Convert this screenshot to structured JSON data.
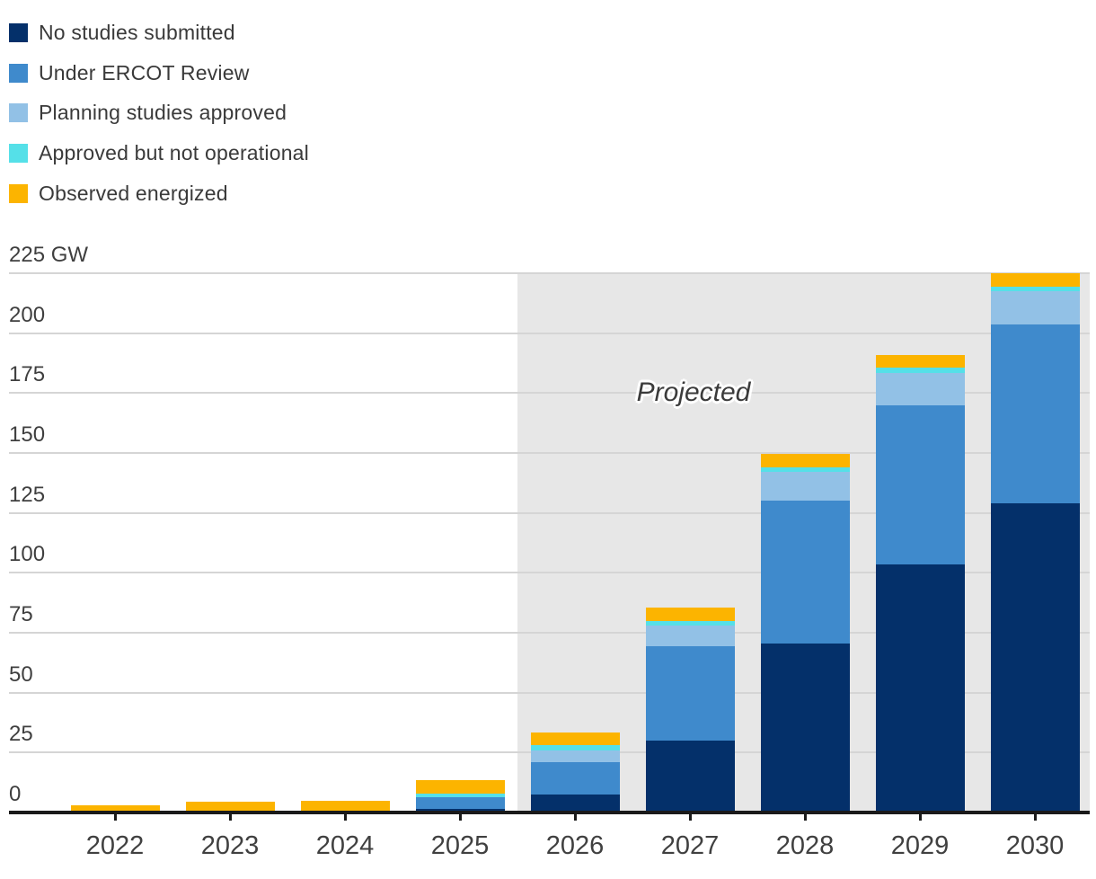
{
  "annotations": {
    "projected_label": "Projected"
  },
  "colors": {
    "projected_background": "#e7e7e7",
    "gridline": "#d5d5d5",
    "axis": "#1a1a1a",
    "tick_text": "#3f3f3f"
  },
  "chart_data": {
    "type": "bar",
    "stacked": true,
    "categories": [
      "2022",
      "2023",
      "2024",
      "2025",
      "2026",
      "2027",
      "2028",
      "2029",
      "2030"
    ],
    "series": [
      {
        "name": "No studies submitted",
        "color": "#04306A",
        "values": [
          0,
          0,
          0,
          1.5,
          7.5,
          30,
          70.5,
          103.5,
          129
        ]
      },
      {
        "name": "Under ERCOT Review",
        "color": "#3F8ACC",
        "values": [
          0,
          0,
          0,
          5,
          13.5,
          39.5,
          59.5,
          66.5,
          74.5
        ]
      },
      {
        "name": "Planning studies approved",
        "color": "#92C1E6",
        "values": [
          0,
          0,
          0,
          0,
          5,
          8.5,
          12,
          13.5,
          14
        ]
      },
      {
        "name": "Approved but not operational",
        "color": "#55E0E8",
        "values": [
          0,
          0,
          0,
          1.5,
          2,
          2,
          2,
          2,
          2
        ]
      },
      {
        "name": "Observed energized",
        "color": "#FCB400",
        "values": [
          3,
          4.5,
          5,
          5.5,
          5.5,
          5.5,
          5.5,
          5.5,
          5.5
        ]
      }
    ],
    "unit": "GW",
    "ylim": [
      0,
      225
    ],
    "yticks": [
      0,
      25,
      50,
      75,
      100,
      125,
      150,
      175,
      200,
      225
    ],
    "ytick_labels": [
      "0",
      "25",
      "50",
      "75",
      "100",
      "125",
      "150",
      "175",
      "200",
      "225 GW"
    ],
    "grid": true,
    "legend_position": "top-left",
    "projected_region": {
      "from_category": "2026",
      "label": "Projected"
    }
  }
}
